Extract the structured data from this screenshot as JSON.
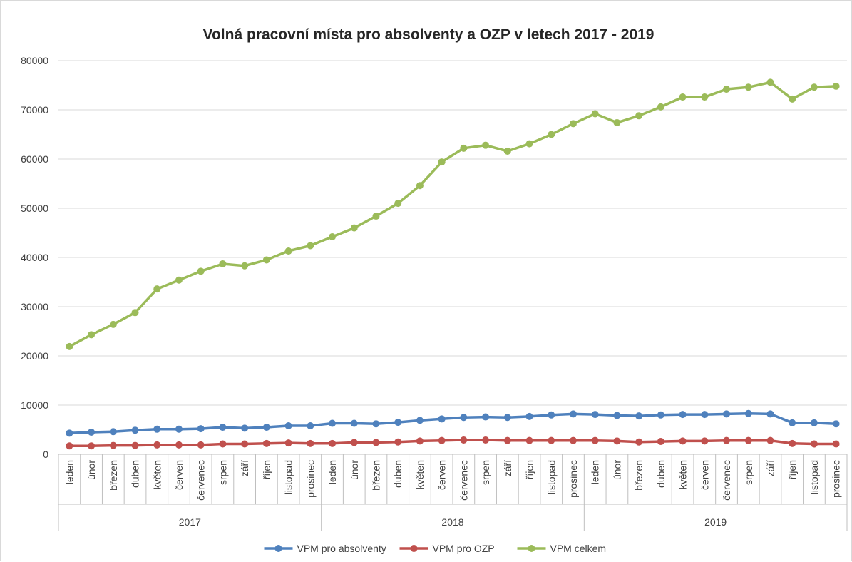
{
  "chart_data": {
    "type": "line",
    "title": "Volná pracovní místa pro absolventy a OZP v letech 2017 - 2019",
    "xlabel": "",
    "ylabel": "",
    "ylim": [
      0,
      80000
    ],
    "yticks": [
      "0",
      "10000",
      "20000",
      "30000",
      "40000",
      "50000",
      "60000",
      "70000",
      "80000"
    ],
    "grid": "horizontal",
    "legend": "bottom",
    "years": [
      "2017",
      "2018",
      "2019"
    ],
    "months": [
      "leden",
      "únor",
      "březen",
      "duben",
      "květen",
      "červen",
      "červenec",
      "srpen",
      "září",
      "říjen",
      "listopad",
      "prosinec"
    ],
    "series": [
      {
        "name": "VPM pro absolventy",
        "color": "#4f81bd",
        "values": [
          4300,
          4500,
          4600,
          4900,
          5100,
          5100,
          5200,
          5500,
          5300,
          5500,
          5800,
          5800,
          6300,
          6300,
          6200,
          6500,
          6900,
          7200,
          7500,
          7600,
          7500,
          7700,
          8000,
          8200,
          8100,
          7900,
          7800,
          8000,
          8100,
          8100,
          8200,
          8300,
          8200,
          6400,
          6400,
          6200
        ]
      },
      {
        "name": "VPM pro OZP",
        "color": "#c0504d",
        "values": [
          1700,
          1700,
          1800,
          1800,
          1900,
          1900,
          1900,
          2100,
          2100,
          2200,
          2300,
          2200,
          2200,
          2400,
          2400,
          2500,
          2700,
          2800,
          2900,
          2900,
          2800,
          2800,
          2800,
          2800,
          2800,
          2700,
          2500,
          2600,
          2700,
          2700,
          2800,
          2800,
          2800,
          2200,
          2100,
          2100
        ]
      },
      {
        "name": "VPM celkem",
        "color": "#9bbb59",
        "values": [
          21900,
          24300,
          26400,
          28800,
          33600,
          35400,
          37200,
          38700,
          38300,
          39500,
          41300,
          42400,
          44200,
          46000,
          48400,
          51000,
          54600,
          59400,
          62200,
          62800,
          61600,
          63100,
          65000,
          67200,
          69200,
          67400,
          68800,
          70600,
          72600,
          72600,
          74200,
          74600,
          75600,
          72200,
          74600,
          74800
        ]
      }
    ]
  }
}
